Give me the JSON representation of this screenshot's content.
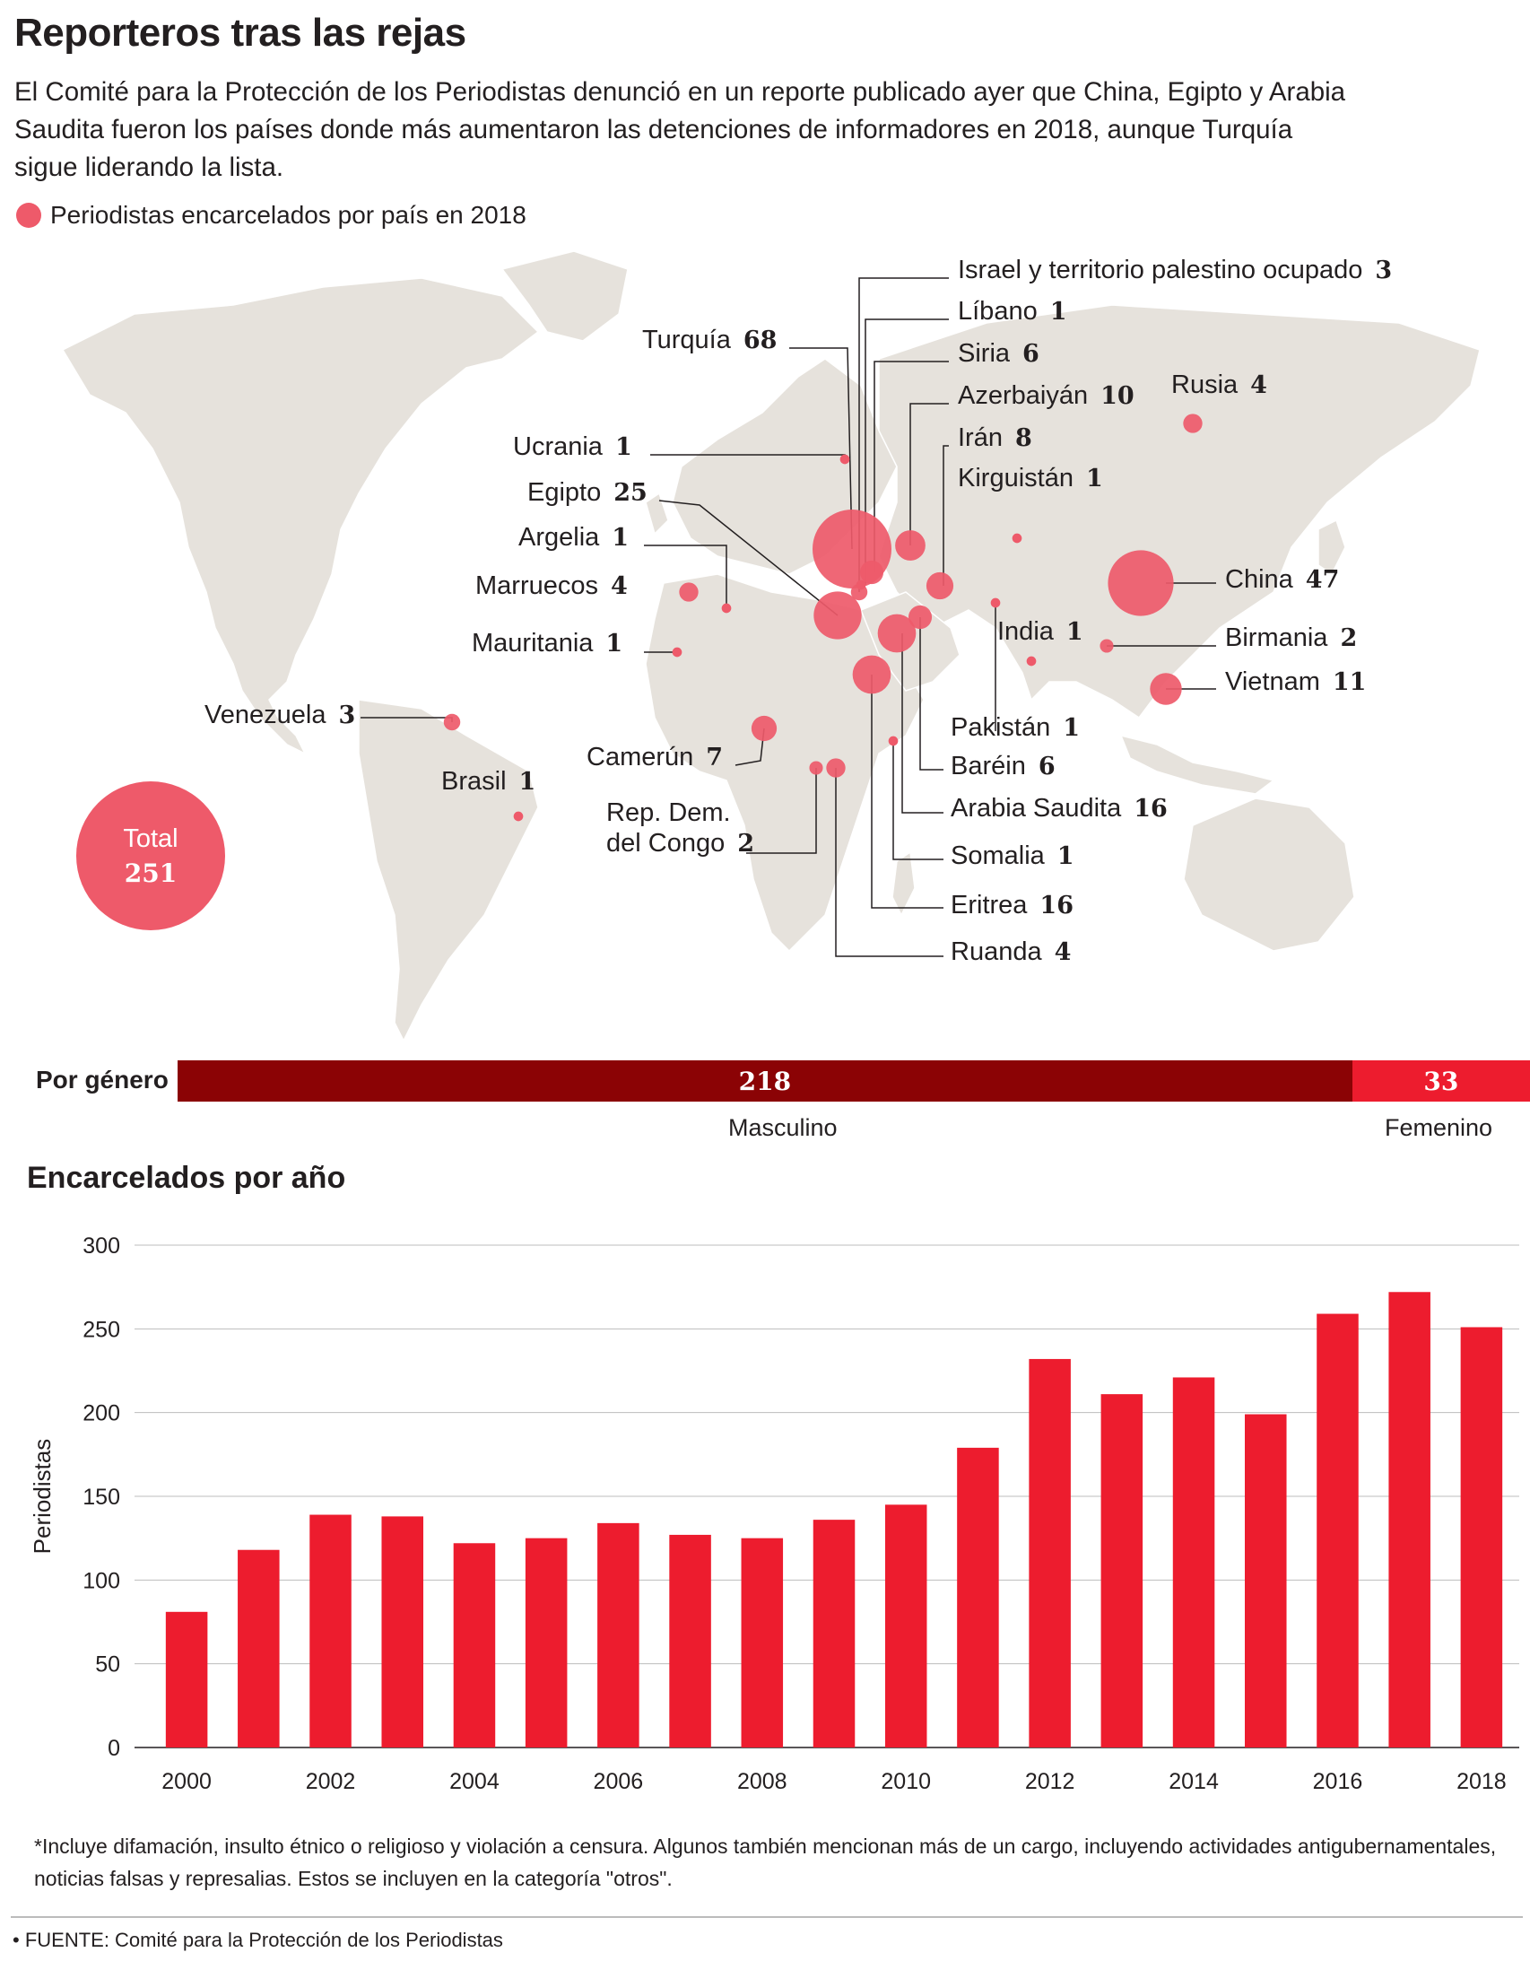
{
  "title": "Reporteros tras las rejas",
  "intro": "El Comité para la Protección de los Periodistas denunció en un reporte publicado ayer que China, Egipto y Arabia Saudita fueron los países donde más aumentaron las detenciones de informadores en 2018, aunque Turquía sigue liderando la lista.",
  "legend": "Periodistas encarcelados por país en 2018",
  "colors": {
    "bubble": "#ee5a6a",
    "land": "#e6e2dc",
    "male": "#8b0305",
    "female": "#ed1c2e",
    "bar": "#ed1c2e"
  },
  "total": {
    "label": "Total",
    "value": "251"
  },
  "chart_data": [
    {
      "type": "bubble-map",
      "title": "Periodistas encarcelados por país en 2018",
      "points": [
        {
          "country": "Israel y territorio palestino ocupado",
          "value": 3
        },
        {
          "country": "Líbano",
          "value": 1
        },
        {
          "country": "Turquía",
          "value": 68
        },
        {
          "country": "Siria",
          "value": 6
        },
        {
          "country": "Azerbaiyán",
          "value": 10
        },
        {
          "country": "Rusia",
          "value": 4
        },
        {
          "country": "Irán",
          "value": 8
        },
        {
          "country": "Kirguistán",
          "value": 1
        },
        {
          "country": "Ucrania",
          "value": 1
        },
        {
          "country": "Egipto",
          "value": 25
        },
        {
          "country": "Argelia",
          "value": 1
        },
        {
          "country": "Marruecos",
          "value": 4
        },
        {
          "country": "China",
          "value": 47
        },
        {
          "country": "Mauritania",
          "value": 1
        },
        {
          "country": "India",
          "value": 1
        },
        {
          "country": "Birmania",
          "value": 2
        },
        {
          "country": "Vietnam",
          "value": 11
        },
        {
          "country": "Venezuela",
          "value": 3
        },
        {
          "country": "Pakistán",
          "value": 1
        },
        {
          "country": "Camerún",
          "value": 7
        },
        {
          "country": "Baréin",
          "value": 6
        },
        {
          "country": "Brasil",
          "value": 1
        },
        {
          "country": "Arabia Saudita",
          "value": 16
        },
        {
          "country": "Rep. Dem. del Congo",
          "value": 2
        },
        {
          "country": "Somalia",
          "value": 1
        },
        {
          "country": "Eritrea",
          "value": 16
        },
        {
          "country": "Ruanda",
          "value": 4
        }
      ]
    },
    {
      "type": "stacked-bar",
      "title": "Por género",
      "series": [
        {
          "name": "Masculino",
          "value": 218
        },
        {
          "name": "Femenino",
          "value": 33
        }
      ]
    },
    {
      "type": "bar",
      "title": "Encarcelados por año",
      "ylabel": "Periodistas",
      "ylim": [
        0,
        300
      ],
      "yticks": [
        0,
        50,
        100,
        150,
        200,
        250,
        300
      ],
      "grid": true,
      "categories": [
        "2000",
        "2001",
        "2002",
        "2003",
        "2004",
        "2005",
        "2006",
        "2007",
        "2008",
        "2009",
        "2010",
        "2011",
        "2012",
        "2013",
        "2014",
        "2015",
        "2016",
        "2017",
        "2018"
      ],
      "xtick_labels": [
        "2000",
        "",
        "2002",
        "",
        "2004",
        "",
        "2006",
        "",
        "2008",
        "",
        "2010",
        "",
        "2012",
        "",
        "2014",
        "",
        "2016",
        "",
        "2018"
      ],
      "values": [
        81,
        118,
        139,
        138,
        122,
        125,
        134,
        127,
        125,
        136,
        145,
        179,
        232,
        211,
        221,
        199,
        259,
        272,
        251
      ]
    }
  ],
  "gender": {
    "label": "Por género",
    "male_value": "218",
    "male_label": "Masculino",
    "female_value": "33",
    "female_label": "Femenino"
  },
  "bars": {
    "title": "Encarcelados por año"
  },
  "footnote": "*Incluye difamación, insulto étnico o religioso y violación a censura. Algunos también mencionan más de un cargo, incluyendo actividades antigubernamentales, noticias falsas y represalias. Estos se incluyen en la categoría \"otros\".",
  "source": "• FUENTE: Comité para la Protección de los Periodistas"
}
